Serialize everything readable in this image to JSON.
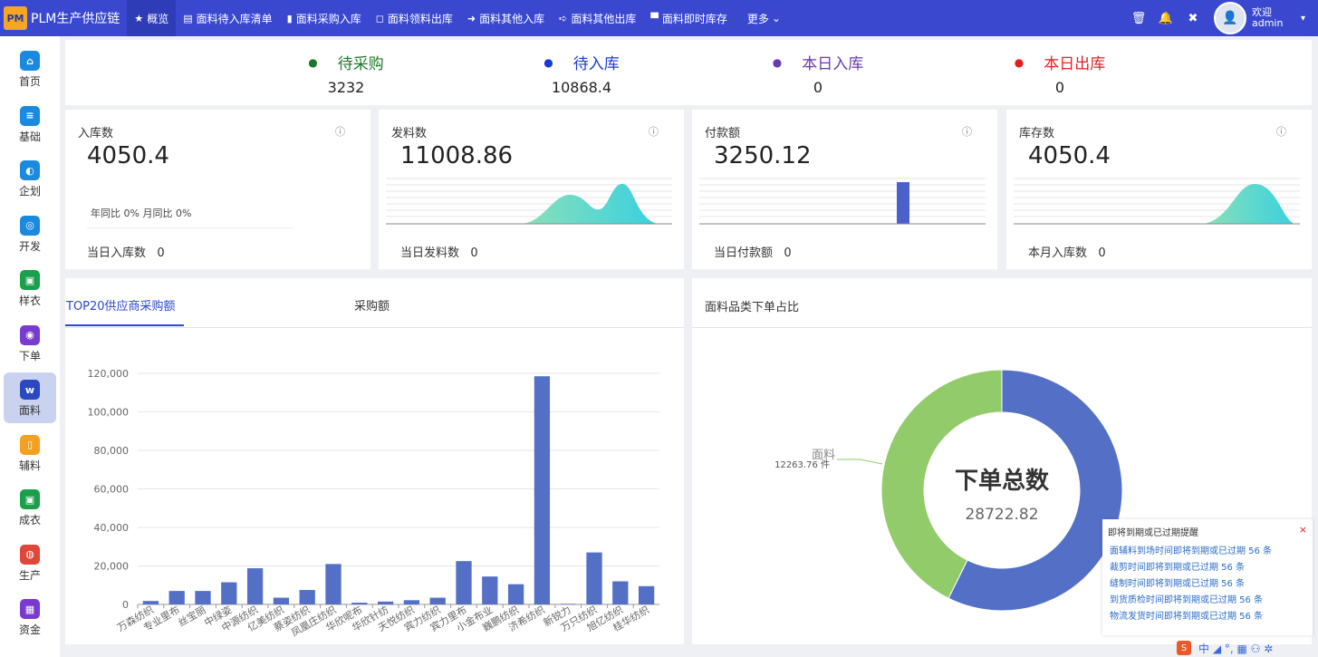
{
  "app": {
    "logo_text": "PM",
    "title": "PLM生产供应链"
  },
  "nav": {
    "items": [
      {
        "icon": "★",
        "label": "概览"
      },
      {
        "icon": "▤",
        "label": "面料待入库清单"
      },
      {
        "icon": "▮",
        "label": "面料采购入库"
      },
      {
        "icon": "◻",
        "label": "面料领料出库"
      },
      {
        "icon": "➜",
        "label": "面料其他入库"
      },
      {
        "icon": "➪",
        "label": "面料其他出库"
      },
      {
        "icon": "▀",
        "label": "面料即时库存"
      }
    ],
    "more_label": "更多",
    "more_caret": "⌄"
  },
  "topright": {
    "trash_glyph": "🗑",
    "bell_glyph": "🔔",
    "fullscreen_glyph": "✖",
    "welcome": "欢迎",
    "user": "admin",
    "caret": "▾",
    "avatar_glyph": "👤"
  },
  "sidebar": [
    {
      "label": "首页",
      "color": "#1a8ae0",
      "glyph": "⌂"
    },
    {
      "label": "基础",
      "color": "#1a8ae0",
      "glyph": "≡"
    },
    {
      "label": "企划",
      "color": "#1a8ae0",
      "glyph": "◐"
    },
    {
      "label": "开发",
      "color": "#1a8ae0",
      "glyph": "◎"
    },
    {
      "label": "样衣",
      "color": "#1aa04a",
      "glyph": "▣"
    },
    {
      "label": "下单",
      "color": "#7a3ad0",
      "glyph": "◉"
    },
    {
      "label": "面料",
      "color": "#2a48c0",
      "glyph": "w"
    },
    {
      "label": "辅料",
      "color": "#f5a020",
      "glyph": "▯"
    },
    {
      "label": "成衣",
      "color": "#1aa04a",
      "glyph": "▣"
    },
    {
      "label": "生产",
      "color": "#e0463a",
      "glyph": "◍"
    },
    {
      "label": "资金",
      "color": "#7a3ad0",
      "glyph": "▦"
    }
  ],
  "summary": [
    {
      "title": "待采购",
      "value": "3232",
      "dot_color": "#1a7a2a",
      "text_color": "#1a7a2a"
    },
    {
      "title": "待入库",
      "value": "10868.4",
      "dot_color": "#1a3ad0",
      "text_color": "#1a3ad0"
    },
    {
      "title": "本日入库",
      "value": "0",
      "dot_color": "#6a3ab0",
      "text_color": "#6a3ab0"
    },
    {
      "title": "本日出库",
      "value": "0",
      "dot_color": "#e02020",
      "text_color": "#e02020"
    }
  ],
  "cards": [
    {
      "title": "入库数",
      "value": "4050.4",
      "sub": "年同比 0% 月同比 0%",
      "foot_label": "当日入库数",
      "foot_value": "0",
      "info": "ⓘ"
    },
    {
      "title": "发料数",
      "value": "11008.86",
      "foot_label": "当日发料数",
      "foot_value": "0",
      "info": "ⓘ"
    },
    {
      "title": "付款额",
      "value": "3250.12",
      "foot_label": "当日付款额",
      "foot_value": "0",
      "info": "ⓘ"
    },
    {
      "title": "库存数",
      "value": "4050.4",
      "foot_label": "本月入库数",
      "foot_value": "0",
      "info": "ⓘ"
    }
  ],
  "left_panel": {
    "tab_active": "TOP20供应商采购额",
    "tab_other": "采购额"
  },
  "right_panel": {
    "title": "面料品类下单占比"
  },
  "chart_data": [
    {
      "type": "bar",
      "categories": [
        "万森纺织",
        "专业里布",
        "丝宝丽",
        "中绿姿",
        "中源纺织",
        "亿美纺织",
        "蔡姿纺织",
        "凤凰庄纺织",
        "华欣呢布",
        "华欣针纺",
        "天悦纺织",
        "宾力纺织",
        "宾力里布",
        "小金布业",
        "巍鹏纺织",
        "济希纺织",
        "新锐力",
        "万只纺织",
        "旭亿纺织",
        "桂华纺织"
      ],
      "values": [
        1800,
        7000,
        7000,
        11500,
        18800,
        3500,
        7500,
        21000,
        900,
        1500,
        2200,
        3500,
        22500,
        14500,
        10500,
        118500,
        300,
        27000,
        12000,
        9500
      ],
      "ylim": [
        0,
        120000
      ],
      "yticks": [
        "0",
        "20,000",
        "40,000",
        "60,000",
        "80,000",
        "100,000",
        "120,000"
      ],
      "grid": true
    },
    {
      "type": "pie",
      "donut": true,
      "center_title": "下单总数",
      "center_value": "28722.82",
      "slices": [
        {
          "name": "面料",
          "label": "12263.76 件",
          "value": 12263.76,
          "color": "#92cb6a"
        },
        {
          "name": "",
          "value": 16459.06,
          "color": "#5470c6"
        }
      ]
    }
  ],
  "reminder": {
    "title": "即将到期或已过期提醒",
    "close": "×",
    "items": [
      "面辅料到场时间即将到期或已过期  56  条",
      "裁剪时间即将到期或已过期  56  条",
      "缝制时间即将到期或已过期  56  条",
      "到货质检时间即将到期或已过期  56  条",
      "物流发货时间即将到期或已过期  56  条"
    ]
  },
  "ime": {
    "logo": "S",
    "text": "中 ◢ °, ▦ ⚇ ✲"
  }
}
